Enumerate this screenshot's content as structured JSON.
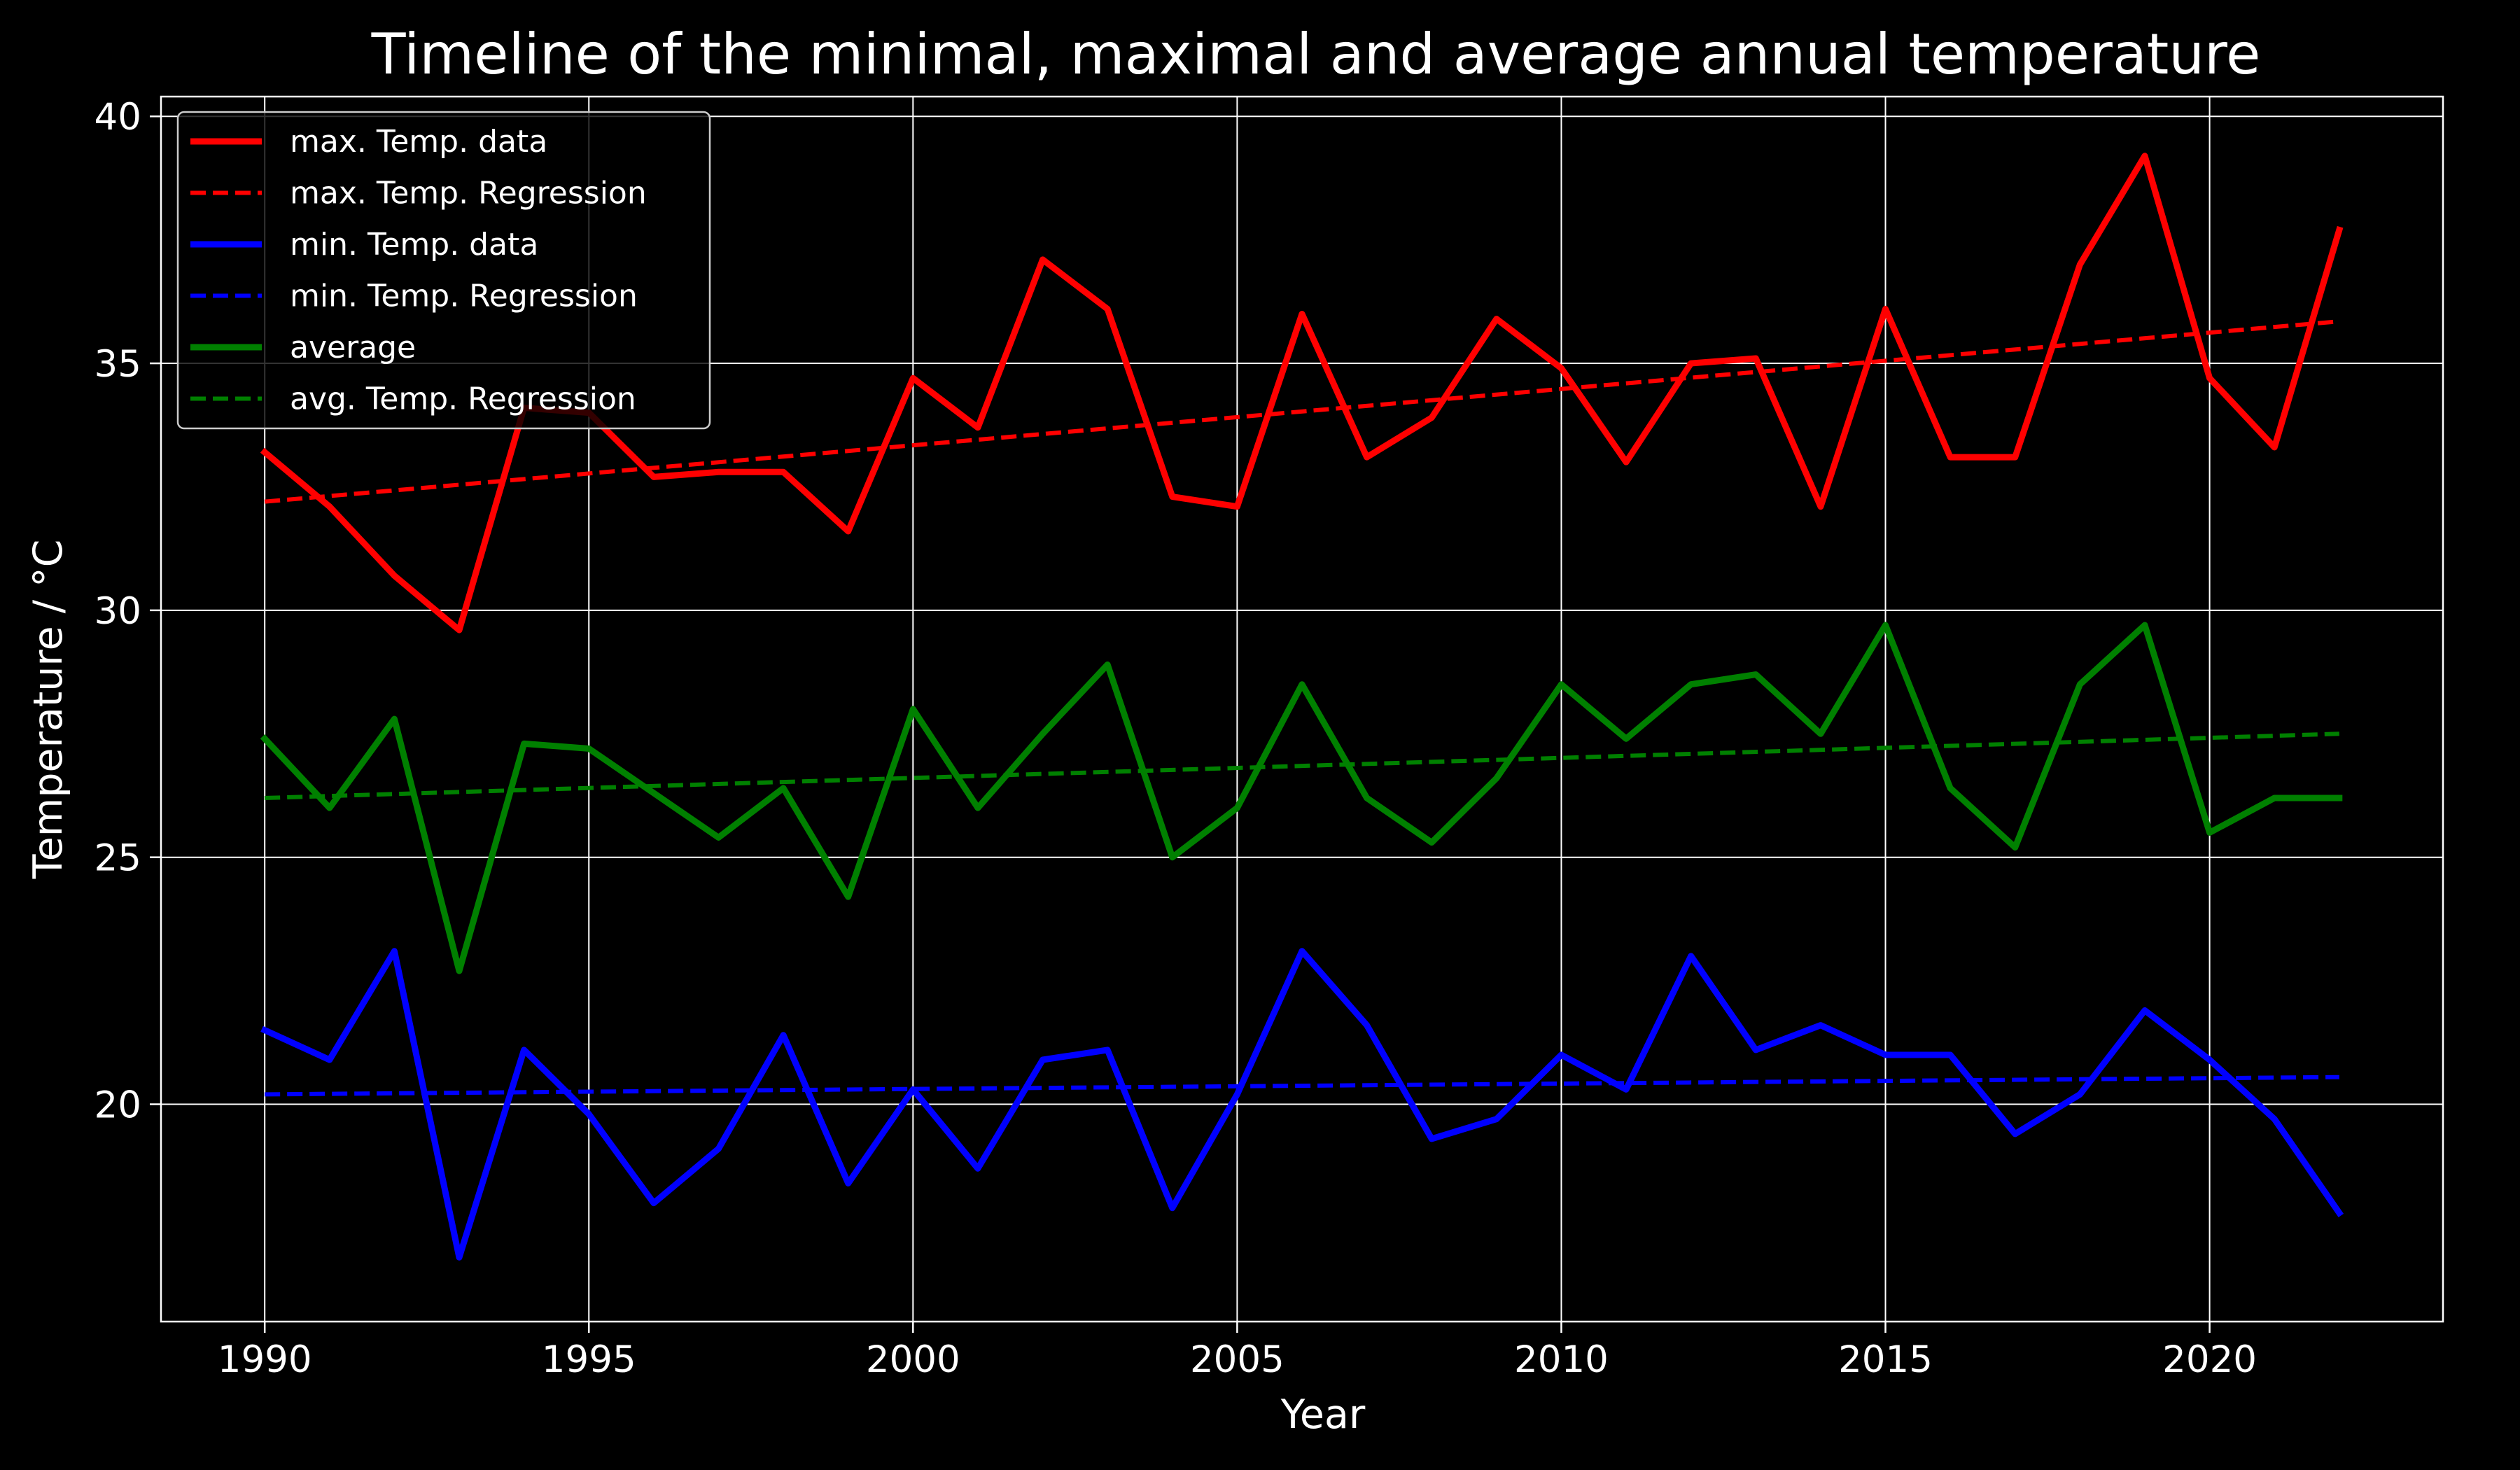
{
  "chart_data": {
    "type": "line",
    "title": "Timeline of the minimal, maximal and average annual temperature",
    "xlabel": "Year",
    "ylabel": "Temperature / °C",
    "xlim": [
      1988.4,
      2023.6
    ],
    "ylim": [
      15.6,
      40.4
    ],
    "x_ticks": [
      1990,
      1995,
      2000,
      2005,
      2010,
      2015,
      2020
    ],
    "y_ticks": [
      20,
      25,
      30,
      35,
      40
    ],
    "grid": true,
    "legend_position": "top-left",
    "background": "#000000",
    "x": [
      1990,
      1991,
      1992,
      1993,
      1994,
      1995,
      1996,
      1997,
      1998,
      1999,
      2000,
      2001,
      2002,
      2003,
      2004,
      2005,
      2006,
      2007,
      2008,
      2009,
      2010,
      2011,
      2012,
      2013,
      2014,
      2015,
      2016,
      2017,
      2018,
      2019,
      2020,
      2021,
      2022
    ],
    "series": [
      {
        "name": "max. Temp. data",
        "color": "#ff0000",
        "style": "solid",
        "values": [
          33.2,
          32.1,
          30.7,
          29.6,
          34.1,
          34.0,
          32.7,
          32.8,
          32.8,
          31.6,
          34.7,
          33.7,
          37.1,
          36.1,
          32.3,
          32.1,
          36.0,
          33.1,
          33.9,
          35.9,
          34.9,
          33.0,
          35.0,
          35.1,
          32.1,
          36.1,
          33.1,
          33.1,
          37.0,
          39.2,
          34.7,
          33.3,
          37.7
        ]
      },
      {
        "name": "max. Temp. Regression",
        "color": "#ff0000",
        "style": "dashed",
        "line_start": [
          1990,
          32.2
        ],
        "line_end": [
          2022,
          35.85
        ]
      },
      {
        "name": "min. Temp. data",
        "color": "#0000ff",
        "style": "solid",
        "values": [
          21.5,
          20.9,
          23.1,
          16.9,
          21.1,
          19.8,
          18.0,
          19.1,
          21.4,
          18.4,
          20.3,
          18.7,
          20.9,
          21.1,
          17.9,
          20.2,
          23.1,
          21.6,
          19.3,
          19.7,
          21.0,
          20.3,
          23.0,
          21.1,
          21.6,
          21.0,
          21.0,
          19.4,
          20.2,
          21.9,
          20.9,
          19.7,
          17.8
        ]
      },
      {
        "name": "min. Temp. Regression",
        "color": "#0000ff",
        "style": "dashed",
        "line_start": [
          1990,
          20.2
        ],
        "line_end": [
          2022,
          20.55
        ]
      },
      {
        "name": "average",
        "color": "#008000",
        "style": "solid",
        "values": [
          27.4,
          26.0,
          27.8,
          22.7,
          27.3,
          27.2,
          26.3,
          25.4,
          26.4,
          24.2,
          28.0,
          26.0,
          27.5,
          28.9,
          25.0,
          26.0,
          28.5,
          26.2,
          25.3,
          26.6,
          28.5,
          27.4,
          28.5,
          28.7,
          27.5,
          29.7,
          26.4,
          25.2,
          28.5,
          29.7,
          25.5,
          26.2,
          26.2
        ]
      },
      {
        "name": "avg. Temp. Regression",
        "color": "#008000",
        "style": "dashed",
        "line_start": [
          1990,
          26.2
        ],
        "line_end": [
          2022,
          27.5
        ]
      }
    ]
  }
}
